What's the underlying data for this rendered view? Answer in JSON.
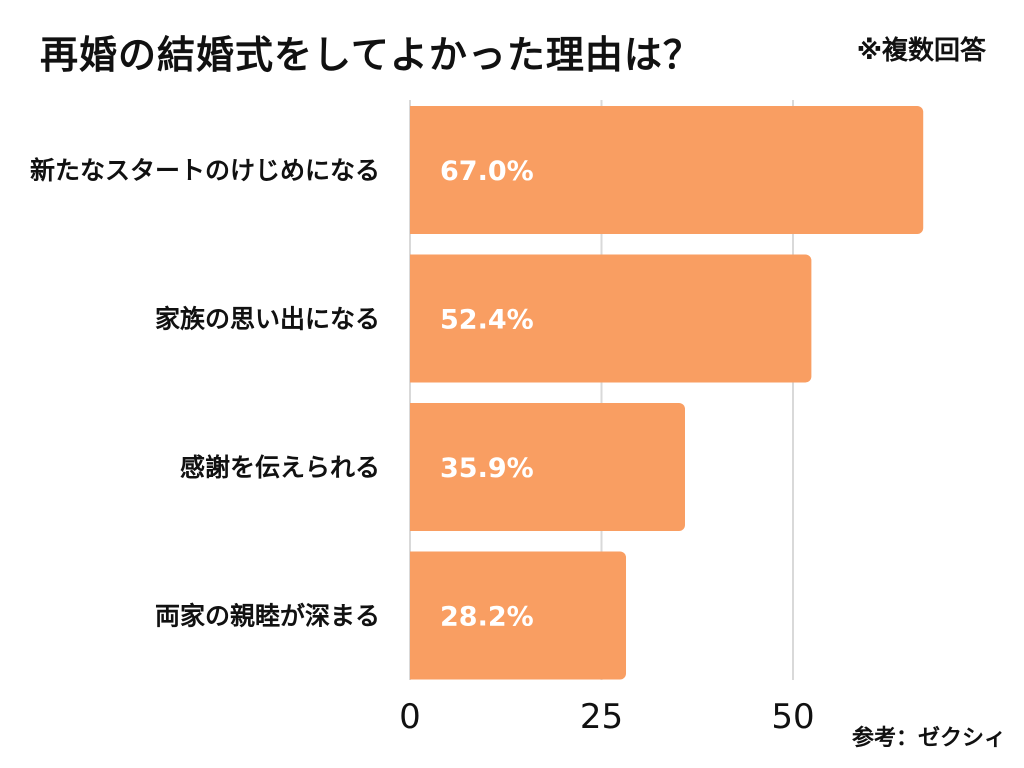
{
  "header": {
    "title": "再婚の結婚式をしてよかった理由は？",
    "note": "※複数回答"
  },
  "footer": {
    "source": "参考：ゼクシィ"
  },
  "chart_data": {
    "type": "bar",
    "orientation": "horizontal",
    "title": "再婚の結婚式をしてよかった理由は？",
    "categories": [
      "新たなスタートのけじめになる",
      "家族の思い出になる",
      "感謝を伝えられる",
      "両家の親睦が深まる"
    ],
    "values": [
      67.0,
      52.4,
      35.9,
      28.2
    ],
    "value_labels": [
      "67.0%",
      "52.4%",
      "35.9%",
      "28.2%"
    ],
    "xticks": [
      0,
      25,
      50
    ],
    "xlim": [
      0,
      67
    ],
    "grid": true,
    "bar_color": "#F99E62",
    "grid_color": "#d9d9d9"
  }
}
